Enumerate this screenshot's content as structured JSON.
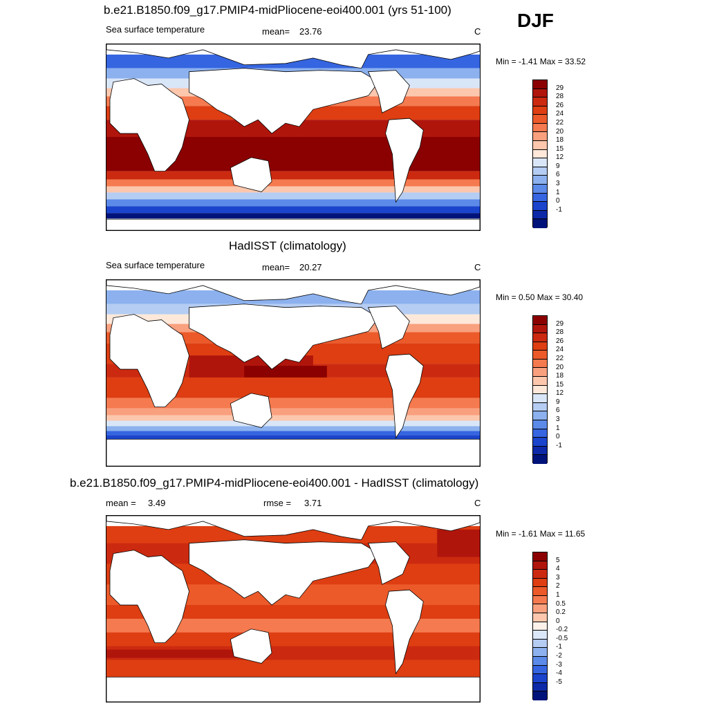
{
  "season": "DJF",
  "units": "C",
  "panels": [
    {
      "title": "b.e21.B1850.f09_g17.PMIP4-midPliocene-eoi400.001 (yrs 51-100)",
      "left_label": "Sea surface temperature",
      "stat_label": "mean=",
      "stat_value": "23.76",
      "units": "C",
      "minmax": "Min =  -1.41 Max =  33.52",
      "colors": [
        "#8b0000",
        "#b0150c",
        "#cc2a10",
        "#de3e12",
        "#ec5a2a",
        "#f57a4f",
        "#f9a07e",
        "#fcc7ad",
        "#fde8da",
        "#d9e6f8",
        "#b5cdf3",
        "#8cb1ee",
        "#5b8ae8",
        "#3565e0",
        "#1a44cc",
        "#0d29a8",
        "#00137a"
      ],
      "ticks": [
        "29",
        "28",
        "26",
        "24",
        "22",
        "20",
        "18",
        "15",
        "12",
        "9",
        "6",
        "3",
        "1",
        "0",
        "-1"
      ]
    },
    {
      "title": "HadISST (climatology)",
      "left_label": "Sea surface temperature",
      "stat_label": "mean=",
      "stat_value": "20.27",
      "units": "C",
      "minmax": "Min =   0.50 Max =  30.40",
      "colors": [
        "#8b0000",
        "#b0150c",
        "#cc2a10",
        "#de3e12",
        "#ec5a2a",
        "#f57a4f",
        "#f9a07e",
        "#fcc7ad",
        "#fde8da",
        "#d9e6f8",
        "#b5cdf3",
        "#8cb1ee",
        "#5b8ae8",
        "#3565e0",
        "#1a44cc",
        "#0d29a8",
        "#00137a"
      ],
      "ticks": [
        "29",
        "28",
        "26",
        "24",
        "22",
        "20",
        "18",
        "15",
        "12",
        "9",
        "6",
        "3",
        "1",
        "0",
        "-1"
      ]
    },
    {
      "title": "b.e21.B1850.f09_g17.PMIP4-midPliocene-eoi400.001 - HadISST (climatology)",
      "left_label": "mean =",
      "left_value": "3.49",
      "stat_label": "rmse =",
      "stat_value": "3.71",
      "units": "C",
      "minmax": "Min =  -1.61 Max =  11.65",
      "colors": [
        "#8b0000",
        "#b0150c",
        "#cc2a10",
        "#de3e12",
        "#ec5a2a",
        "#f57a4f",
        "#f9a07e",
        "#fcc7ad",
        "#fdf2ea",
        "#dbe8f9",
        "#b5cdf3",
        "#8cb1ee",
        "#5b8ae8",
        "#3565e0",
        "#1a44cc",
        "#0d29a8",
        "#00137a"
      ],
      "ticks": [
        "5",
        "4",
        "3",
        "2",
        "1",
        "0.5",
        "0.2",
        "0",
        "-0.2",
        "-0.5",
        "-1",
        "-2",
        "-3",
        "-4",
        "-5"
      ]
    }
  ]
}
